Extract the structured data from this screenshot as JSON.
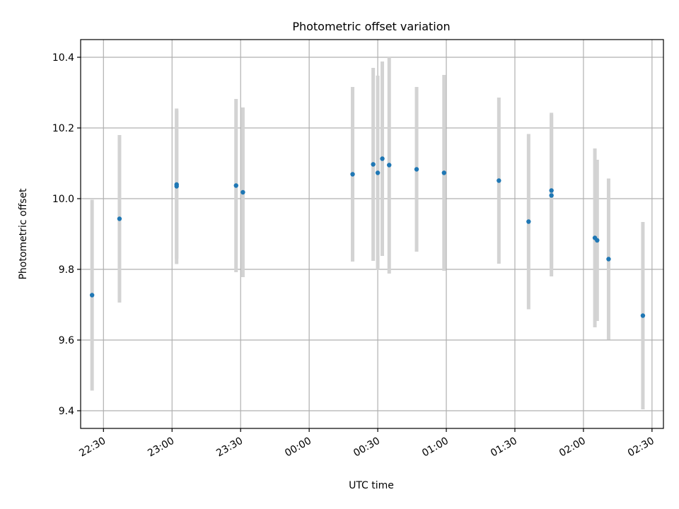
{
  "chart_data": {
    "type": "scatter",
    "title": "Photometric offset variation",
    "xlabel": "UTC time",
    "ylabel": "Photometric offset",
    "x_axis": {
      "kind": "time",
      "range": [
        "22:20",
        "02:35"
      ],
      "tick_labels": [
        "22:30",
        "23:00",
        "23:30",
        "00:00",
        "00:30",
        "01:00",
        "01:30",
        "02:00",
        "02:30"
      ]
    },
    "y_axis": {
      "range": [
        9.35,
        10.45
      ],
      "tick_labels": [
        "9.4",
        "9.6",
        "9.8",
        "10.0",
        "10.2",
        "10.4"
      ]
    },
    "grid": true,
    "points": [
      {
        "x": "22:25",
        "y": 9.727,
        "err": 0.27
      },
      {
        "x": "22:37",
        "y": 9.943,
        "err": 0.237
      },
      {
        "x": "23:02",
        "y": 10.04,
        "err": 0.21
      },
      {
        "x": "23:02",
        "y": 10.035,
        "err": 0.22
      },
      {
        "x": "23:28",
        "y": 10.037,
        "err": 0.245
      },
      {
        "x": "23:31",
        "y": 10.018,
        "err": 0.24
      },
      {
        "x": "00:19",
        "y": 10.069,
        "err": 0.247
      },
      {
        "x": "00:28",
        "y": 10.097,
        "err": 0.273
      },
      {
        "x": "00:30",
        "y": 10.073,
        "err": 0.275
      },
      {
        "x": "00:32",
        "y": 10.113,
        "err": 0.275
      },
      {
        "x": "00:35",
        "y": 10.095,
        "err": 0.307
      },
      {
        "x": "00:47",
        "y": 10.083,
        "err": 0.233
      },
      {
        "x": "00:59",
        "y": 10.073,
        "err": 0.277
      },
      {
        "x": "01:23",
        "y": 10.051,
        "err": 0.235
      },
      {
        "x": "01:36",
        "y": 9.935,
        "err": 0.248
      },
      {
        "x": "01:46",
        "y": 10.023,
        "err": 0.22
      },
      {
        "x": "01:46",
        "y": 10.009,
        "err": 0.229
      },
      {
        "x": "02:05",
        "y": 9.889,
        "err": 0.253
      },
      {
        "x": "02:06",
        "y": 9.882,
        "err": 0.228
      },
      {
        "x": "02:11",
        "y": 9.829,
        "err": 0.228
      },
      {
        "x": "02:26",
        "y": 9.669,
        "err": 0.265
      }
    ],
    "colors": {
      "marker": "#1f77b4",
      "errorbar": "#d3d3d3",
      "grid": "#b0b0b0",
      "axes": "#000000"
    }
  }
}
